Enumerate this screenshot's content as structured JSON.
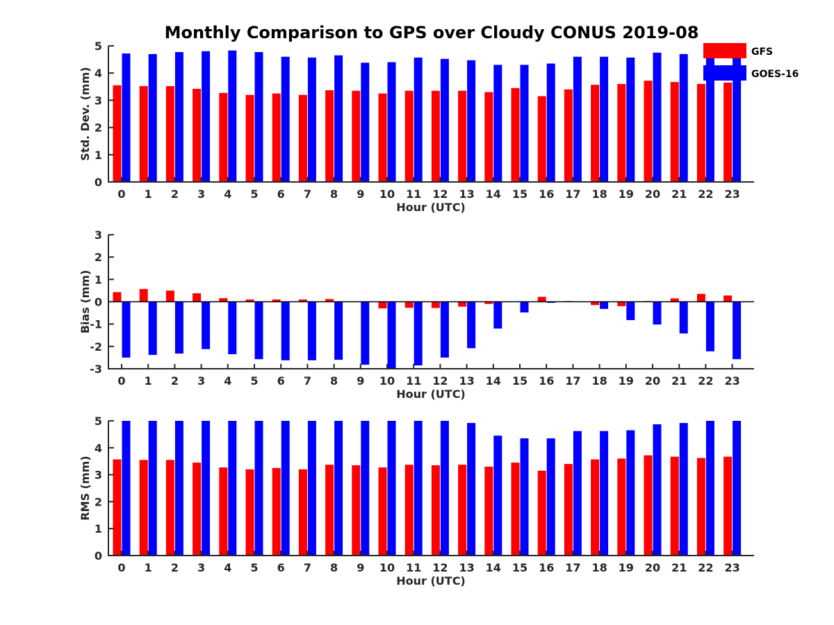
{
  "title": "Monthly Comparison to GPS over Cloudy CONUS 2019-08",
  "colors": {
    "GFS": "#ff0000",
    "GOES-16": "#0000ff"
  },
  "legend": {
    "placement": "top-right",
    "entries": [
      "GFS",
      "GOES-16"
    ]
  },
  "chart_data": [
    {
      "type": "bar",
      "title": "Monthly Comparison to GPS over Cloudy CONUS 2019-08",
      "xlabel": "Hour (UTC)",
      "ylabel": "Std. Dev. (mm)",
      "ylim": [
        0,
        5
      ],
      "yticks": [
        0,
        1,
        2,
        3,
        4,
        5
      ],
      "grid": false,
      "categories": [
        "0",
        "1",
        "2",
        "3",
        "4",
        "5",
        "6",
        "7",
        "8",
        "9",
        "10",
        "11",
        "12",
        "13",
        "14",
        "15",
        "16",
        "17",
        "18",
        "19",
        "20",
        "21",
        "22",
        "23"
      ],
      "series": [
        {
          "name": "GFS",
          "values": [
            3.55,
            3.52,
            3.52,
            3.42,
            3.27,
            3.2,
            3.25,
            3.2,
            3.37,
            3.35,
            3.25,
            3.35,
            3.35,
            3.35,
            3.3,
            3.45,
            3.15,
            3.4,
            3.57,
            3.6,
            3.72,
            3.67,
            3.6,
            3.65
          ]
        },
        {
          "name": "GOES-16",
          "values": [
            4.72,
            4.7,
            4.77,
            4.8,
            4.83,
            4.77,
            4.6,
            4.57,
            4.65,
            4.38,
            4.4,
            4.57,
            4.52,
            4.47,
            4.3,
            4.3,
            4.35,
            4.6,
            4.6,
            4.57,
            4.75,
            4.7,
            4.55,
            4.65
          ]
        }
      ]
    },
    {
      "type": "bar",
      "xlabel": "Hour (UTC)",
      "ylabel": "Bias (mm)",
      "ylim": [
        -3,
        3
      ],
      "yticks": [
        -3,
        -2,
        -1,
        0,
        1,
        2,
        3
      ],
      "grid": false,
      "categories": [
        "0",
        "1",
        "2",
        "3",
        "4",
        "5",
        "6",
        "7",
        "8",
        "9",
        "10",
        "11",
        "12",
        "13",
        "14",
        "15",
        "16",
        "17",
        "18",
        "19",
        "20",
        "21",
        "22",
        "23"
      ],
      "series": [
        {
          "name": "GFS",
          "values": [
            0.43,
            0.57,
            0.5,
            0.38,
            0.16,
            0.1,
            0.1,
            0.1,
            0.12,
            0.0,
            -0.3,
            -0.27,
            -0.28,
            -0.22,
            -0.1,
            0.0,
            0.22,
            0.03,
            -0.15,
            -0.2,
            0.03,
            0.15,
            0.35,
            0.28
          ]
        },
        {
          "name": "GOES-16",
          "values": [
            -2.5,
            -2.38,
            -2.32,
            -2.12,
            -2.35,
            -2.57,
            -2.62,
            -2.62,
            -2.6,
            -2.82,
            -3.0,
            -2.85,
            -2.5,
            -2.08,
            -1.2,
            -0.48,
            -0.05,
            0.0,
            -0.32,
            -0.82,
            -1.02,
            -1.42,
            -2.22,
            -2.57
          ]
        }
      ]
    },
    {
      "type": "bar",
      "xlabel": "Hour (UTC)",
      "ylabel": "RMS (mm)",
      "ylim": [
        0,
        5
      ],
      "yticks": [
        0,
        1,
        2,
        3,
        4,
        5
      ],
      "grid": false,
      "categories": [
        "0",
        "1",
        "2",
        "3",
        "4",
        "5",
        "6",
        "7",
        "8",
        "9",
        "10",
        "11",
        "12",
        "13",
        "14",
        "15",
        "16",
        "17",
        "18",
        "19",
        "20",
        "21",
        "22",
        "23"
      ],
      "series": [
        {
          "name": "GFS",
          "values": [
            3.57,
            3.55,
            3.55,
            3.45,
            3.27,
            3.2,
            3.25,
            3.2,
            3.37,
            3.35,
            3.27,
            3.37,
            3.35,
            3.37,
            3.3,
            3.45,
            3.15,
            3.4,
            3.57,
            3.6,
            3.72,
            3.67,
            3.62,
            3.67
          ]
        },
        {
          "name": "GOES-16",
          "values": [
            5.0,
            5.0,
            5.0,
            5.0,
            5.0,
            5.0,
            5.0,
            5.0,
            5.0,
            5.0,
            5.0,
            5.0,
            5.0,
            4.92,
            4.45,
            4.35,
            4.35,
            4.62,
            4.62,
            4.65,
            4.87,
            4.92,
            5.0,
            5.0
          ]
        }
      ]
    }
  ]
}
